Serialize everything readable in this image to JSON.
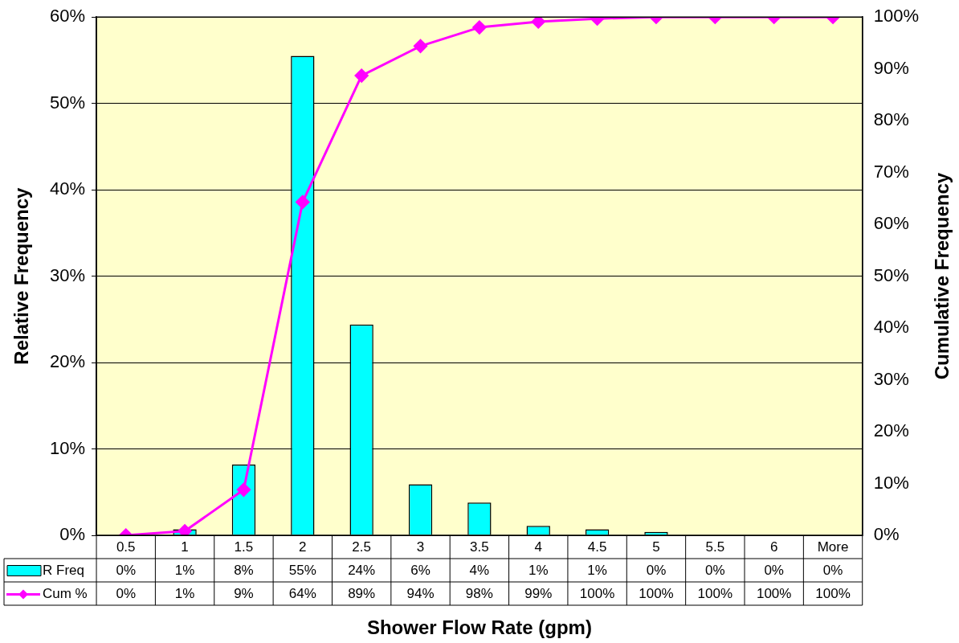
{
  "chart_data": {
    "type": "bar",
    "xlabel": "Shower Flow Rate (gpm)",
    "ylabel": "Relative Frequency",
    "y2label": "Cumulative Frequency",
    "categories": [
      "0.5",
      "1",
      "1.5",
      "2",
      "2.5",
      "3",
      "3.5",
      "4",
      "4.5",
      "5",
      "5.5",
      "6",
      "More"
    ],
    "series": [
      {
        "name": "R Freq",
        "color": "#00ffff",
        "values": [
          0,
          0.7,
          8.2,
          55.5,
          24.4,
          5.9,
          3.8,
          1.1,
          0.7,
          0.4,
          0,
          0,
          0
        ],
        "value_labels": [
          "0%",
          "1%",
          "8%",
          "55%",
          "24%",
          "6%",
          "4%",
          "1%",
          "1%",
          "0%",
          "0%",
          "0%",
          "0%"
        ]
      },
      {
        "name": "Cum %",
        "type": "line",
        "axis": "y2",
        "color": "#ff00ff",
        "marker": "diamond",
        "values": [
          0,
          0.8,
          8.8,
          64.3,
          88.7,
          94.4,
          98,
          99.1,
          99.7,
          100,
          100,
          100,
          100
        ],
        "value_labels": [
          "0%",
          "1%",
          "9%",
          "64%",
          "89%",
          "94%",
          "98%",
          "99%",
          "100%",
          "100%",
          "100%",
          "100%",
          "100%"
        ]
      }
    ],
    "ylim": [
      0,
      60
    ],
    "yticks": [
      {
        "value": 0,
        "label": "0%"
      },
      {
        "value": 10,
        "label": "10%"
      },
      {
        "value": 20,
        "label": "20%"
      },
      {
        "value": 30,
        "label": "30%"
      },
      {
        "value": 40,
        "label": "40%"
      },
      {
        "value": 50,
        "label": "50%"
      },
      {
        "value": 60,
        "label": "60%"
      }
    ],
    "y2lim": [
      0,
      100
    ],
    "y2ticks": [
      {
        "value": 0,
        "label": "0%"
      },
      {
        "value": 10,
        "label": "10%"
      },
      {
        "value": 20,
        "label": "20%"
      },
      {
        "value": 30,
        "label": "30%"
      },
      {
        "value": 40,
        "label": "40%"
      },
      {
        "value": 50,
        "label": "50%"
      },
      {
        "value": 60,
        "label": "60%"
      },
      {
        "value": 70,
        "label": "70%"
      },
      {
        "value": 80,
        "label": "80%"
      },
      {
        "value": 90,
        "label": "90%"
      },
      {
        "value": 100,
        "label": "100%"
      }
    ],
    "grid": "y",
    "legend": "bottom"
  }
}
